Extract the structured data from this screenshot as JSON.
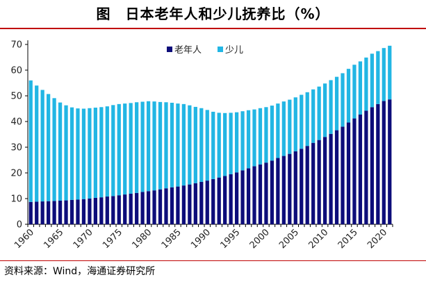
{
  "title": "图　日本老年人和少儿抚养比（%）",
  "source": "资料来源：Wind，海通证券研究所",
  "colors": {
    "elderly": "#0d0d7a",
    "children": "#22b6e4",
    "rule": "#c00000"
  },
  "chart_data": {
    "type": "bar",
    "stacked": true,
    "xlabel": "",
    "ylabel": "",
    "ylim": [
      0,
      70
    ],
    "yticks": [
      0,
      10,
      20,
      30,
      40,
      50,
      60,
      70
    ],
    "xtick_labels": [
      "1960",
      "1965",
      "1970",
      "1975",
      "1980",
      "1985",
      "1990",
      "1995",
      "2000",
      "2005",
      "2010",
      "2015",
      "2020"
    ],
    "legend_position": "top-center",
    "categories": [
      1960,
      1961,
      1962,
      1963,
      1964,
      1965,
      1966,
      1967,
      1968,
      1969,
      1970,
      1971,
      1972,
      1973,
      1974,
      1975,
      1976,
      1977,
      1978,
      1979,
      1980,
      1981,
      1982,
      1983,
      1984,
      1985,
      1986,
      1987,
      1988,
      1989,
      1990,
      1991,
      1992,
      1993,
      1994,
      1995,
      1996,
      1997,
      1998,
      1999,
      2000,
      2001,
      2002,
      2003,
      2004,
      2005,
      2006,
      2007,
      2008,
      2009,
      2010,
      2011,
      2012,
      2013,
      2014,
      2015,
      2016,
      2017,
      2018,
      2019,
      2020,
      2021
    ],
    "series": [
      {
        "name": "老年人",
        "values": [
          8.7,
          8.8,
          8.9,
          9.0,
          9.1,
          9.2,
          9.3,
          9.5,
          9.6,
          9.8,
          10.0,
          10.3,
          10.5,
          10.8,
          11.0,
          11.3,
          11.6,
          11.9,
          12.2,
          12.6,
          12.9,
          13.2,
          13.6,
          14.0,
          14.4,
          14.7,
          15.1,
          15.5,
          16.0,
          16.5,
          17.0,
          17.6,
          18.2,
          18.8,
          19.5,
          20.2,
          21.0,
          21.8,
          22.6,
          23.3,
          24.0,
          24.8,
          25.8,
          26.6,
          27.4,
          28.4,
          29.4,
          30.5,
          31.7,
          32.8,
          34.0,
          35.2,
          36.6,
          38.0,
          39.6,
          41.2,
          42.7,
          44.2,
          45.6,
          46.8,
          48.0,
          48.6
        ]
      },
      {
        "name": "少儿",
        "values": [
          47.3,
          45.2,
          43.4,
          41.7,
          40.0,
          38.2,
          37.0,
          36.0,
          35.5,
          35.2,
          35.2,
          35.1,
          35.1,
          35.1,
          35.4,
          35.5,
          35.4,
          35.3,
          35.3,
          35.1,
          35.0,
          34.6,
          34.0,
          33.5,
          32.9,
          32.3,
          31.7,
          30.8,
          29.7,
          28.7,
          27.5,
          26.2,
          25.2,
          24.5,
          23.9,
          23.4,
          23.0,
          22.6,
          22.1,
          21.9,
          21.6,
          21.4,
          21.2,
          21.2,
          21.1,
          21.0,
          21.0,
          20.9,
          20.8,
          20.8,
          20.8,
          20.9,
          20.8,
          20.8,
          20.9,
          20.9,
          20.7,
          20.7,
          20.8,
          20.6,
          20.6,
          20.9
        ]
      }
    ]
  }
}
